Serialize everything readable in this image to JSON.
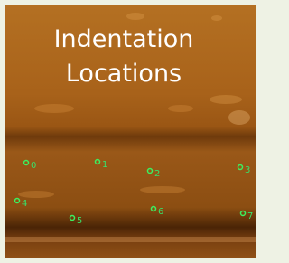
{
  "title": [
    "Indentation",
    "Locations"
  ],
  "points": [
    {
      "label": "0"
    },
    {
      "label": "1"
    },
    {
      "label": "2"
    },
    {
      "label": "3"
    },
    {
      "label": "4"
    },
    {
      "label": "5"
    },
    {
      "label": "6"
    },
    {
      "label": "7"
    }
  ]
}
